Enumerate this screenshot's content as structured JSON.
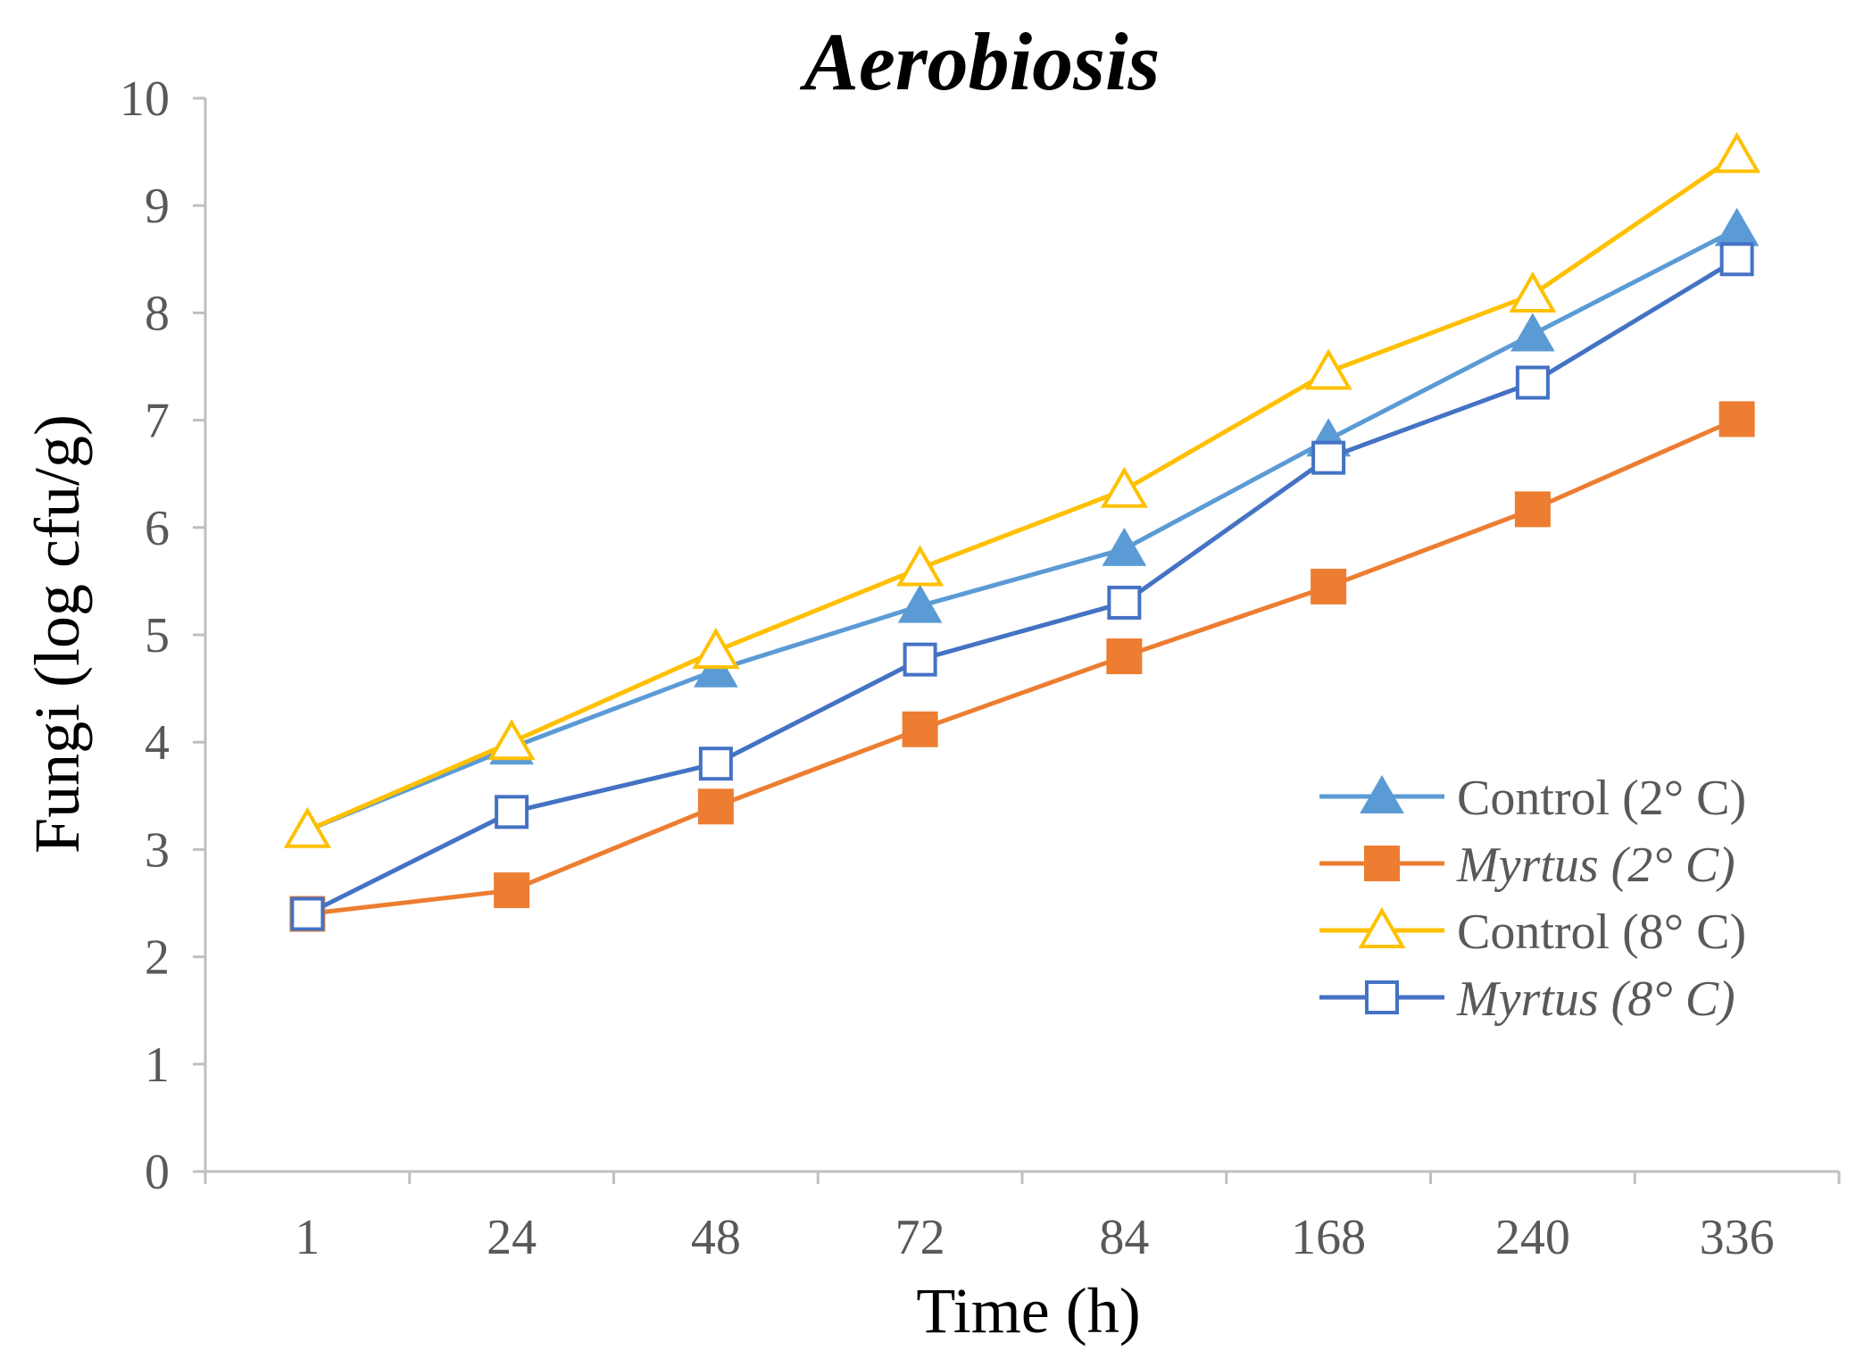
{
  "chart_data": {
    "type": "line",
    "title": "Aerobiosis",
    "xlabel": "Time (h)",
    "ylabel": "Fungi (log cfu/g)",
    "ylim": [
      0,
      10
    ],
    "yticks": [
      0,
      1,
      2,
      3,
      4,
      5,
      6,
      7,
      8,
      9,
      10
    ],
    "categories": [
      "1",
      "24",
      "48",
      "72",
      "84",
      "168",
      "240",
      "336"
    ],
    "grid": false,
    "legend_position": "right",
    "series": [
      {
        "name": "Control (2° C)",
        "name_main": "Control",
        "name_suffix": " (2° C)",
        "italic": false,
        "color": "#5b9bd5",
        "marker": "triangle-filled",
        "values": [
          3.18,
          3.95,
          4.67,
          5.27,
          5.8,
          6.82,
          7.8,
          8.78
        ]
      },
      {
        "name": "Myrtus (2° C)",
        "name_main": "Myrtus",
        "name_suffix": " (2° C)",
        "italic": true,
        "color": "#ed7d31",
        "marker": "square-filled",
        "values": [
          2.4,
          2.62,
          3.4,
          4.12,
          4.8,
          5.45,
          6.17,
          7.01
        ]
      },
      {
        "name": "Control (8° C)",
        "name_main": "Control",
        "name_suffix": " (8° C)",
        "italic": false,
        "color": "#ffc000",
        "marker": "triangle-open",
        "values": [
          3.18,
          4.0,
          4.85,
          5.62,
          6.35,
          7.45,
          8.17,
          9.47
        ]
      },
      {
        "name": "Myrtus (8° C)",
        "name_main": "Myrtus",
        "name_suffix": " (8° C)",
        "italic": true,
        "color": "#4472c4",
        "marker": "square-open",
        "values": [
          2.4,
          3.35,
          3.8,
          4.77,
          5.3,
          6.65,
          7.35,
          8.5
        ]
      }
    ]
  }
}
